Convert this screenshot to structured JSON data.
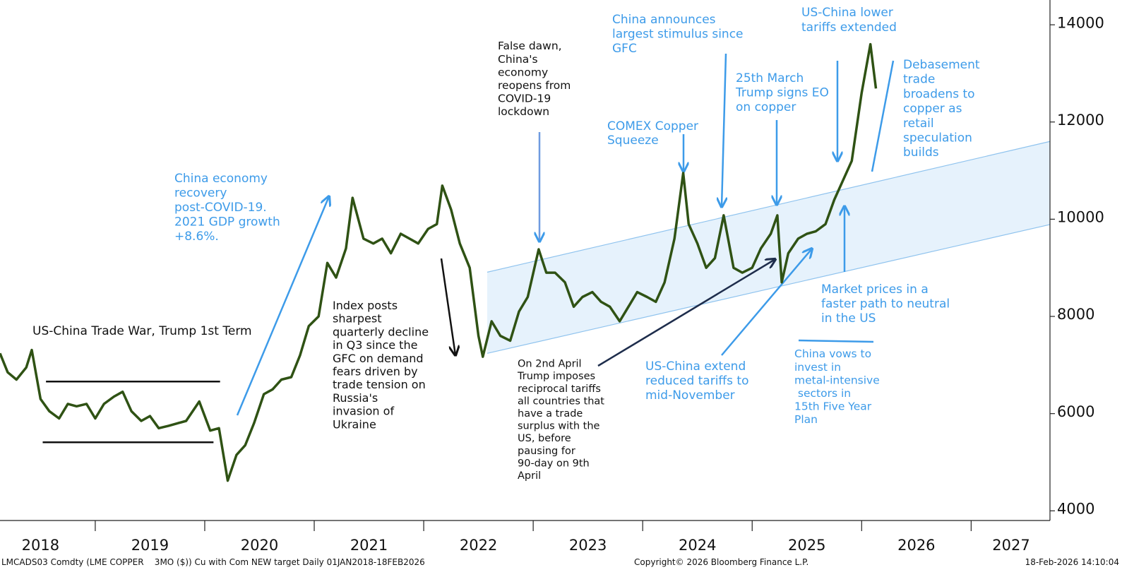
{
  "chart_data": {
    "type": "line",
    "x": [
      2018.13,
      2018.2,
      2018.28,
      2018.37,
      2018.42,
      2018.5,
      2018.58,
      2018.67,
      2018.75,
      2018.83,
      2018.92,
      2019.0,
      2019.08,
      2019.17,
      2019.25,
      2019.33,
      2019.42,
      2019.5,
      2019.58,
      2019.67,
      2019.75,
      2019.83,
      2019.95,
      2020.05,
      2020.13,
      2020.21,
      2020.29,
      2020.37,
      2020.45,
      2020.54,
      2020.62,
      2020.7,
      2020.79,
      2020.87,
      2020.95,
      2021.04,
      2021.12,
      2021.2,
      2021.29,
      2021.35,
      2021.45,
      2021.54,
      2021.62,
      2021.7,
      2021.79,
      2021.87,
      2021.95,
      2022.04,
      2022.12,
      2022.17,
      2022.25,
      2022.33,
      2022.42,
      2022.5,
      2022.54,
      2022.62,
      2022.7,
      2022.79,
      2022.87,
      2022.95,
      2023.05,
      2023.12,
      2023.2,
      2023.29,
      2023.37,
      2023.45,
      2023.54,
      2023.62,
      2023.7,
      2023.79,
      2023.87,
      2023.95,
      2024.04,
      2024.12,
      2024.2,
      2024.29,
      2024.37,
      2024.42,
      2024.5,
      2024.58,
      2024.66,
      2024.74,
      2024.83,
      2024.91,
      2025.0,
      2025.08,
      2025.17,
      2025.23,
      2025.27,
      2025.33,
      2025.42,
      2025.5,
      2025.58,
      2025.67,
      2025.75,
      2025.83,
      2025.91,
      2026.0,
      2026.08,
      2026.13
    ],
    "series": [
      {
        "color": "#2f5214",
        "values": [
          7240,
          6850,
          6700,
          6950,
          7310,
          6300,
          6050,
          5900,
          6200,
          6150,
          6200,
          5900,
          6200,
          6350,
          6450,
          6050,
          5850,
          5950,
          5700,
          5750,
          5800,
          5850,
          6250,
          5650,
          5700,
          4620,
          5150,
          5350,
          5800,
          6400,
          6500,
          6700,
          6750,
          7200,
          7800,
          8000,
          9100,
          8800,
          9400,
          10440,
          9600,
          9500,
          9600,
          9300,
          9700,
          9600,
          9500,
          9800,
          9900,
          10690,
          10200,
          9500,
          9000,
          7600,
          7170,
          7900,
          7600,
          7500,
          8100,
          8400,
          9380,
          8900,
          8900,
          8700,
          8200,
          8400,
          8500,
          8300,
          8200,
          7900,
          8200,
          8500,
          8400,
          8300,
          8700,
          9600,
          10950,
          9900,
          9500,
          9000,
          9200,
          10080,
          9000,
          8900,
          9000,
          9400,
          9700,
          10080,
          8700,
          9300,
          9600,
          9700,
          9750,
          9900,
          10400,
          10800,
          11200,
          12600,
          13600,
          12690
        ]
      }
    ],
    "xlim": [
      2018.13,
      2027.72
    ],
    "xticks": [
      {
        "value": 2018.5,
        "label": "2018"
      },
      {
        "value": 2019.5,
        "label": "2019"
      },
      {
        "value": 2020.5,
        "label": "2020"
      },
      {
        "value": 2021.5,
        "label": "2021"
      },
      {
        "value": 2022.5,
        "label": "2022"
      },
      {
        "value": 2023.5,
        "label": "2023"
      },
      {
        "value": 2024.5,
        "label": "2024"
      },
      {
        "value": 2025.5,
        "label": "2025"
      },
      {
        "value": 2026.5,
        "label": "2026"
      },
      {
        "value": 2027.5,
        "label": "2027"
      }
    ],
    "ylim": [
      3830,
      14510
    ],
    "yticks": [
      4000,
      6000,
      8000,
      10000,
      12000,
      14000
    ],
    "channel": {
      "x": [
        2022.58,
        2027.72
      ],
      "upper": [
        8910,
        11600
      ],
      "lower": [
        7240,
        9890
      ],
      "color": "#e6f2fc"
    },
    "reference_lines": [
      {
        "x": [
          2018.55,
          2020.14
        ],
        "value": 6660
      },
      {
        "x": [
          2018.52,
          2020.08
        ],
        "value": 5410
      }
    ],
    "annotations": [
      {
        "color": "#111111",
        "lines": [
          "US-China Trade War, Trump 1st Term"
        ]
      },
      {
        "color": "#3d9be9",
        "lines": [
          "China economy",
          "recovery",
          "post-COVID-19.",
          "2021 GDP growth",
          "+8.6%."
        ]
      },
      {
        "color": "#111111",
        "lines": [
          "Index posts",
          "sharpest",
          "quarterly decline",
          "in Q3 since the",
          "GFC on demand",
          "fears driven by",
          "trade tension on",
          "Russia's",
          "invasion of",
          "Ukraine"
        ]
      },
      {
        "color": "#111111",
        "lines": [
          "False dawn,",
          "China's",
          "economy",
          "reopens from",
          "COVID-19",
          "lockdown"
        ]
      },
      {
        "color": "#111111",
        "lines": [
          "On 2nd April",
          "Trump imposes",
          "reciprocal tariffs",
          "all countries that",
          "have a trade",
          "surplus with the",
          "US, before",
          "pausing for",
          "90-day on 9th",
          "April"
        ]
      },
      {
        "color": "#3d9be9",
        "lines": [
          "COMEX Copper",
          "Squeeze"
        ]
      },
      {
        "color": "#3d9be9",
        "lines": [
          "China announces",
          "largest stimulus since",
          "GFC"
        ]
      },
      {
        "color": "#3d9be9",
        "lines": [
          "25th March",
          "Trump signs EO",
          "on copper"
        ]
      },
      {
        "color": "#3d9be9",
        "lines": [
          "US-China lower",
          "tariffs extended"
        ]
      },
      {
        "color": "#3d9be9",
        "lines": [
          "Debasement",
          "trade",
          "broadens to",
          "copper as",
          "retail",
          "speculation",
          "builds"
        ]
      },
      {
        "color": "#3d9be9",
        "lines": [
          "US-China extend",
          "reduced tariffs to",
          "mid-November"
        ]
      },
      {
        "color": "#3d9be9",
        "lines": [
          "Market prices in a",
          "faster path to neutral",
          "in the US"
        ]
      },
      {
        "color": "#3d9be9",
        "lines": [
          "China vows to",
          "invest in",
          "metal-intensive",
          " sectors in",
          "15th Five Year",
          "Plan"
        ]
      }
    ],
    "footer": {
      "left": "LMCADS03 Comdty (LME COPPER    3MO ($)) Cu with Com NEW target Daily 01JAN2018-18FEB2026",
      "center": "Copyright© 2026 Bloomberg Finance L.P.",
      "right": "18-Feb-2026 14:10:04"
    }
  }
}
